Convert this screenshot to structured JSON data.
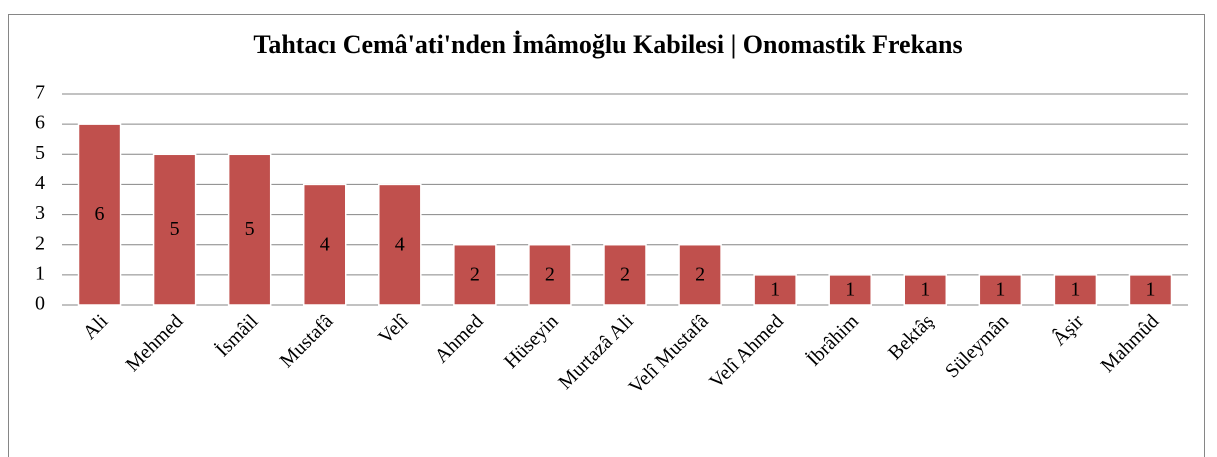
{
  "chart_data": {
    "type": "bar",
    "title": "Tahtacı Cemâ'ati'nden İmâmoğlu Kabilesi | Onomastik Frekans",
    "categories": [
      "Ali",
      "Mehmed",
      "İsmâil",
      "Mustafâ",
      "Velî",
      "Ahmed",
      "Hüseyin",
      "Murtazâ Ali",
      "Velî Mustafâ",
      "Velî Ahmed",
      "İbrâhim",
      "Bektâş",
      "Süleymân",
      "Âşir",
      "Mahmûd"
    ],
    "values": [
      6,
      5,
      5,
      4,
      4,
      2,
      2,
      2,
      2,
      1,
      1,
      1,
      1,
      1,
      1
    ],
    "color": "#c0504d",
    "ylim": [
      0,
      7
    ],
    "yticks": [
      0,
      1,
      2,
      3,
      4,
      5,
      6,
      7
    ],
    "grid": true
  }
}
